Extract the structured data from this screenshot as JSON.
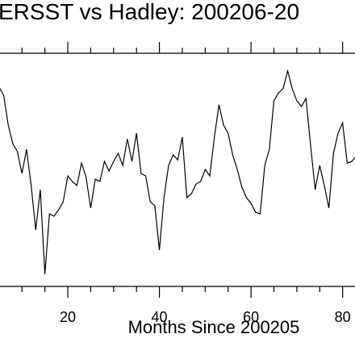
{
  "chart_data": {
    "type": "line",
    "title": "ERSST vs Hadley: 200206-20",
    "x_label": "Months Since 200205",
    "x": [
      5,
      6,
      7,
      8,
      9,
      10,
      11,
      12,
      13,
      14,
      15,
      16,
      17,
      18,
      19,
      20,
      21,
      22,
      23,
      24,
      25,
      26,
      27,
      28,
      29,
      30,
      31,
      32,
      33,
      34,
      35,
      36,
      37,
      38,
      39,
      40,
      41,
      42,
      43,
      44,
      45,
      46,
      47,
      48,
      49,
      50,
      51,
      52,
      53,
      54,
      55,
      56,
      57,
      58,
      59,
      60,
      61,
      62,
      63,
      64,
      65,
      66,
      67,
      68,
      69,
      70,
      71,
      72,
      73,
      74,
      75,
      76,
      77,
      78,
      79,
      80,
      81,
      82,
      83
    ],
    "values": [
      85.5,
      82,
      69.2,
      61.2,
      57.8,
      48.4,
      58.8,
      43.3,
      24.2,
      41.5,
      5.2,
      31.1,
      30.1,
      32.9,
      36.3,
      47.4,
      45,
      43.3,
      52.9,
      46.7,
      33.6,
      46,
      45,
      53.6,
      49.5,
      53.6,
      57.1,
      51.9,
      63.3,
      53.6,
      65.7,
      48.4,
      47.4,
      36.3,
      34.6,
      15.6,
      38.1,
      51.9,
      56.4,
      54.3,
      64,
      38.1,
      39.8,
      43.9,
      45,
      50.2,
      47.4,
      64,
      77.9,
      69.2,
      65.7,
      56.4,
      50.2,
      42.6,
      38.1,
      35.6,
      31.8,
      31.1,
      51.9,
      58.8,
      79.6,
      83,
      84.8,
      92.4,
      84.8,
      79.6,
      77.2,
      80.6,
      60.6,
      41.5,
      51.9,
      43.3,
      33.6,
      57.1,
      65.7,
      70.2,
      52.9,
      53.6,
      56.1
    ],
    "color": "#000000",
    "xlim": [
      5.2,
      82.7
    ],
    "ylim": [
      0,
      100
    ],
    "xticks": [
      20,
      40,
      60,
      80
    ],
    "xminorticks": [
      10,
      15,
      25,
      30,
      35,
      45,
      50,
      55,
      65,
      70,
      75
    ]
  }
}
